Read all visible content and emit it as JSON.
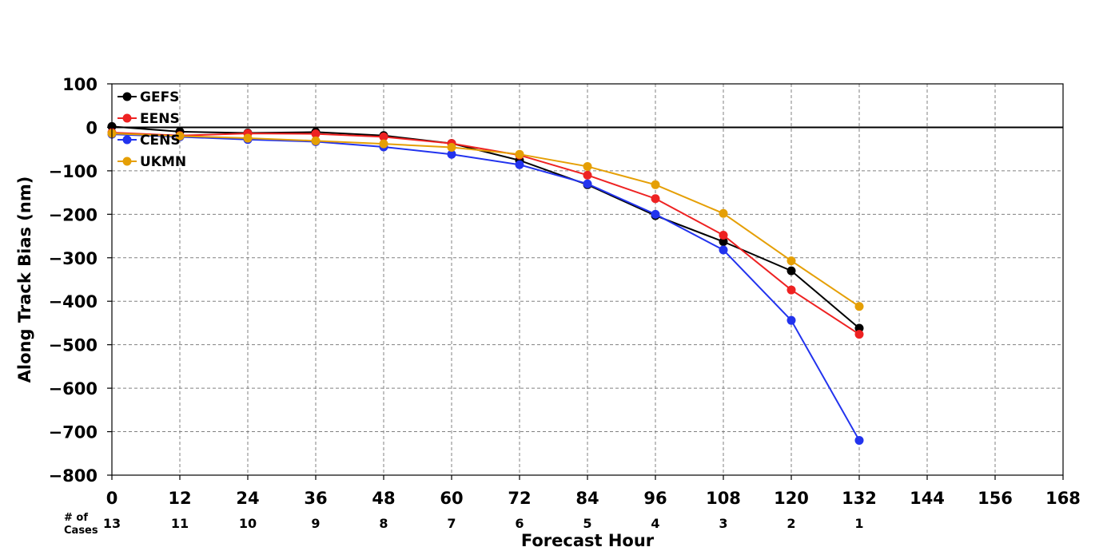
{
  "chart_data": {
    "type": "line",
    "xlabel": "Forecast Hour",
    "ylabel": "Along Track Bias (nm)",
    "xlim": [
      0,
      168
    ],
    "ylim": [
      -800,
      100
    ],
    "x_ticks": [
      "0",
      "12",
      "24",
      "36",
      "48",
      "60",
      "72",
      "84",
      "96",
      "108",
      "120",
      "132",
      "144",
      "156",
      "168"
    ],
    "y_ticks": [
      "100",
      "0",
      "−100",
      "−200",
      "−300",
      "−400",
      "−500",
      "−600",
      "−700",
      "−800"
    ],
    "grid": true,
    "grid_style": "dashed",
    "zero_line": true,
    "legend_position": "top-left",
    "cases_title": "# of\nCases",
    "cases": [
      "13",
      "11",
      "10",
      "9",
      "8",
      "7",
      "6",
      "5",
      "4",
      "3",
      "2",
      "1"
    ],
    "x": [
      0,
      12,
      24,
      36,
      48,
      60,
      72,
      84,
      96,
      108,
      120,
      132
    ],
    "series": [
      {
        "name": "GEFS",
        "color": "#000000",
        "values": [
          2,
          -10,
          -13,
          -11,
          -19,
          -37,
          -76,
          -132,
          -203,
          -263,
          -330,
          -462
        ]
      },
      {
        "name": "EENS",
        "color": "#ee2222",
        "values": [
          -12,
          -19,
          -14,
          -15,
          -22,
          -37,
          -64,
          -110,
          -164,
          -248,
          -374,
          -476
        ]
      },
      {
        "name": "CENS",
        "color": "#2233ee",
        "values": [
          -16,
          -22,
          -28,
          -33,
          -45,
          -62,
          -86,
          -130,
          -200,
          -282,
          -444,
          -720
        ]
      },
      {
        "name": "UKMN",
        "color": "#e59f05",
        "values": [
          -14,
          -20,
          -25,
          -31,
          -38,
          -46,
          -62,
          -90,
          -132,
          -198,
          -307,
          -412
        ]
      }
    ]
  }
}
